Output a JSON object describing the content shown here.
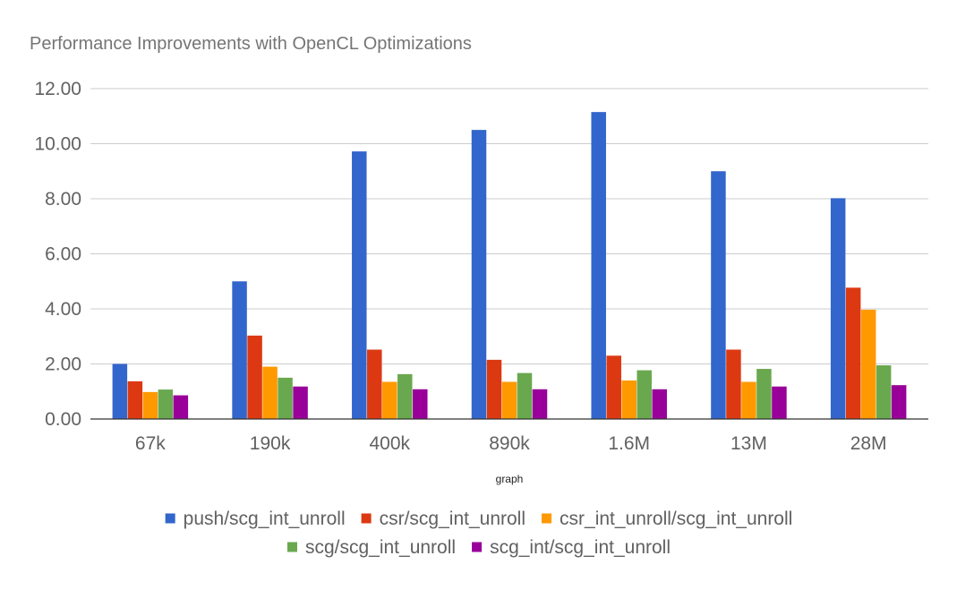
{
  "chart_data": {
    "type": "bar",
    "title": "Performance Improvements with OpenCL Optimizations",
    "xlabel": "graph",
    "ylabel": "",
    "ylim": [
      0,
      12
    ],
    "yticks": [
      "0.00",
      "2.00",
      "4.00",
      "6.00",
      "8.00",
      "10.00",
      "12.00"
    ],
    "grid": true,
    "legend_position": "bottom",
    "categories": [
      "67k",
      "190k",
      "400k",
      "890k",
      "1.6M",
      "13M",
      "28M"
    ],
    "series": [
      {
        "name": "push/scg_int_unroll",
        "color": "#3366cc",
        "values": [
          2.0,
          5.0,
          9.72,
          10.5,
          11.15,
          9.0,
          8.02
        ]
      },
      {
        "name": "csr/scg_int_unroll",
        "color": "#dc3912",
        "values": [
          1.37,
          3.03,
          2.52,
          2.15,
          2.3,
          2.52,
          4.77
        ]
      },
      {
        "name": "csr_int_unroll/scg_int_unroll",
        "color": "#ff9900",
        "values": [
          0.98,
          1.9,
          1.35,
          1.35,
          1.4,
          1.35,
          3.97
        ]
      },
      {
        "name": "scg/scg_int_unroll",
        "color": "#6aa84f",
        "values": [
          1.07,
          1.5,
          1.63,
          1.67,
          1.77,
          1.82,
          1.95
        ]
      },
      {
        "name": "scg_int/scg_int_unroll",
        "color": "#990099",
        "values": [
          0.86,
          1.18,
          1.08,
          1.08,
          1.08,
          1.18,
          1.23
        ]
      }
    ]
  }
}
